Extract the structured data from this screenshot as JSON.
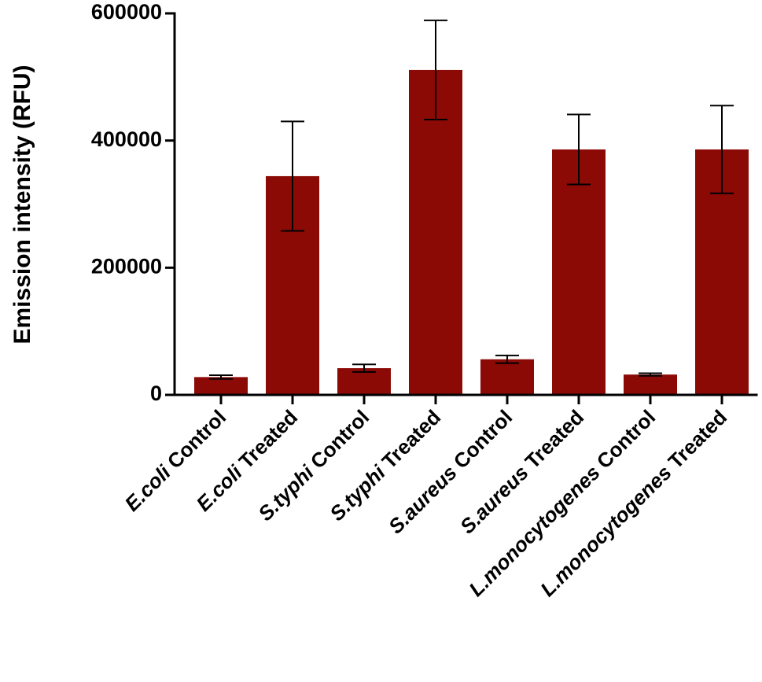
{
  "chart_data": {
    "type": "bar",
    "ylabel": "Emission intensity (RFU)",
    "categories": [
      "E.coli Control",
      "E.coli Treated",
      "S.typhi Control",
      "S.typhi Treated",
      "S.aureus Control",
      "S.aureus Treated",
      "L.monocytogenes Control",
      "L.monocytogenes Treated"
    ],
    "values": [
      28000,
      344000,
      42000,
      511000,
      56000,
      386000,
      32000,
      386000
    ],
    "errors": [
      3000,
      86000,
      6000,
      78000,
      6000,
      55000,
      2000,
      69000
    ],
    "color": "#8b0a06",
    "ylim": [
      0,
      600000
    ],
    "yticks": [
      0,
      200000,
      400000,
      600000
    ],
    "grid": false
  }
}
